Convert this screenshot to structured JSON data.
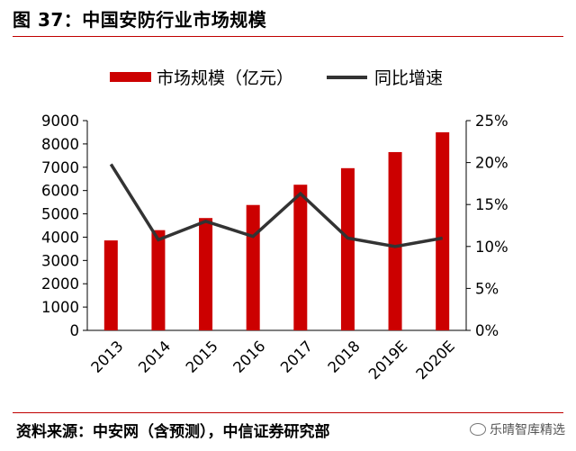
{
  "figure_title": "图 37：中国安防行业市场规模",
  "source_note": "资料来源：中安网（含预测），中信证券研究部",
  "watermark": "乐晴智库精选",
  "colors": {
    "bar": "#cc0000",
    "line": "#333333",
    "rule": "#c00000"
  },
  "chart_data": {
    "type": "bar",
    "categories": [
      "2013",
      "2014",
      "2015",
      "2016",
      "2017",
      "2018",
      "2019E",
      "2020E"
    ],
    "series": [
      {
        "name": "市场规模（亿元）",
        "type": "bar",
        "axis": "left",
        "values": [
          3860,
          4300,
          4820,
          5380,
          6250,
          6960,
          7650,
          8500
        ]
      },
      {
        "name": "同比增速",
        "type": "line",
        "axis": "right",
        "values": [
          19.8,
          10.8,
          13.0,
          11.2,
          16.3,
          11.0,
          10.0,
          11.0
        ]
      }
    ],
    "left_axis": {
      "ylim": [
        0,
        9000
      ],
      "ticks": [
        "0",
        "1000",
        "2000",
        "3000",
        "4000",
        "5000",
        "6000",
        "7000",
        "8000",
        "9000"
      ]
    },
    "right_axis": {
      "ylim": [
        0,
        25
      ],
      "ticks": [
        "0%",
        "5%",
        "10%",
        "15%",
        "20%",
        "25%"
      ]
    },
    "legend": {
      "position": "top",
      "labels": [
        "市场规模（亿元）",
        "同比增速"
      ]
    },
    "grid": false
  }
}
